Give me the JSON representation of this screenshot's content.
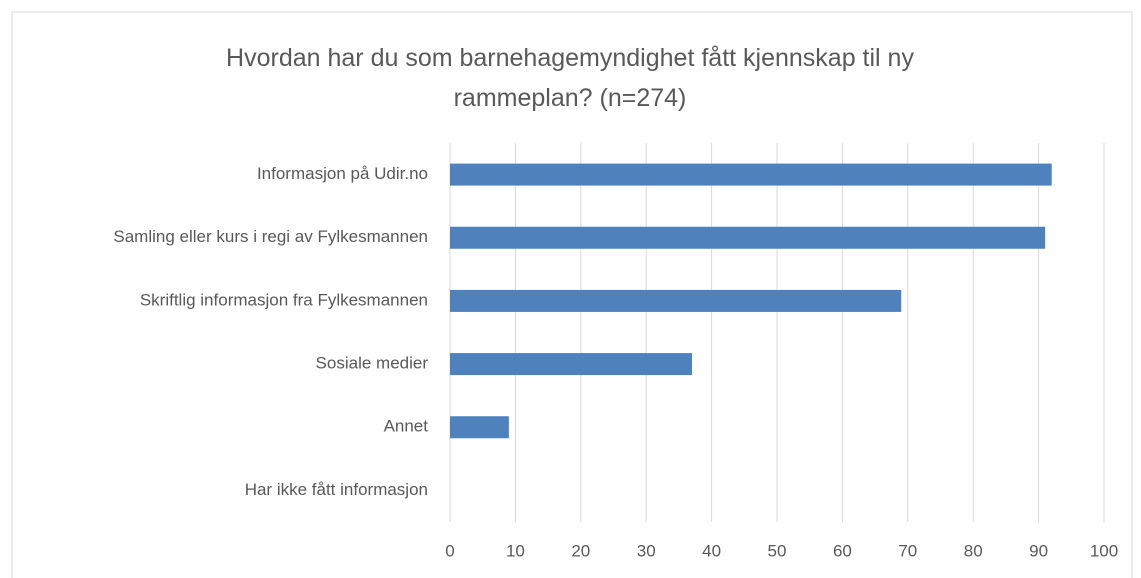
{
  "chart_data": {
    "type": "barh",
    "title": "Hvordan har du som barnehagemyndighet fått kjennskap til ny rammeplan? (n=274)",
    "categories": [
      "Informasjon på Udir.no",
      "Samling eller kurs i regi av Fylkesmannen",
      "Skriftlig informasjon fra Fylkesmannen",
      "Sosiale medier",
      "Annet",
      "Har ikke fått informasjon"
    ],
    "values": [
      92,
      91,
      69,
      37,
      9,
      0
    ],
    "color": "#4f81bd",
    "xlim": [
      0,
      100
    ],
    "xticks": [
      0,
      10,
      20,
      30,
      40,
      50,
      60,
      70,
      80,
      90,
      100
    ],
    "grid": true
  }
}
